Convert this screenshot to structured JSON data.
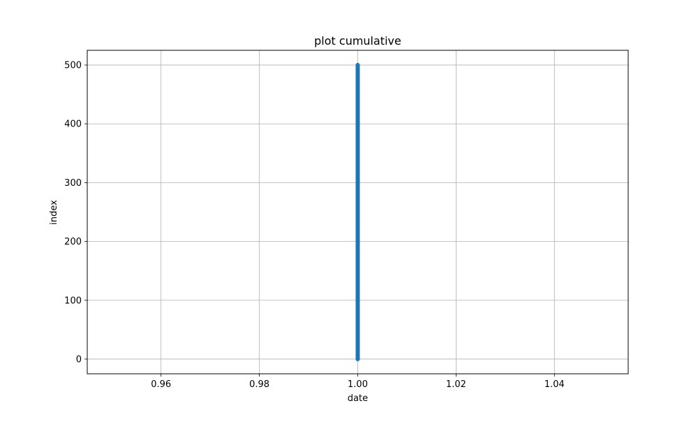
{
  "chart_data": {
    "type": "scatter",
    "title": "plot cumulative",
    "xlabel": "date",
    "ylabel": "index",
    "xlim": [
      0.945,
      1.055
    ],
    "ylim": [
      -25,
      525
    ],
    "x_ticks": [
      0.96,
      0.98,
      1.0,
      1.02,
      1.04
    ],
    "x_tick_labels": [
      "0.96",
      "0.98",
      "1.00",
      "1.02",
      "1.04"
    ],
    "y_ticks": [
      0,
      100,
      200,
      300,
      400,
      500
    ],
    "y_tick_labels": [
      "0",
      "100",
      "200",
      "300",
      "400",
      "500"
    ],
    "grid": true,
    "series": [
      {
        "color": "#1f77b4",
        "x_constant": 1.0,
        "y_start": 0,
        "y_end": 500,
        "y_step": 1
      }
    ]
  }
}
